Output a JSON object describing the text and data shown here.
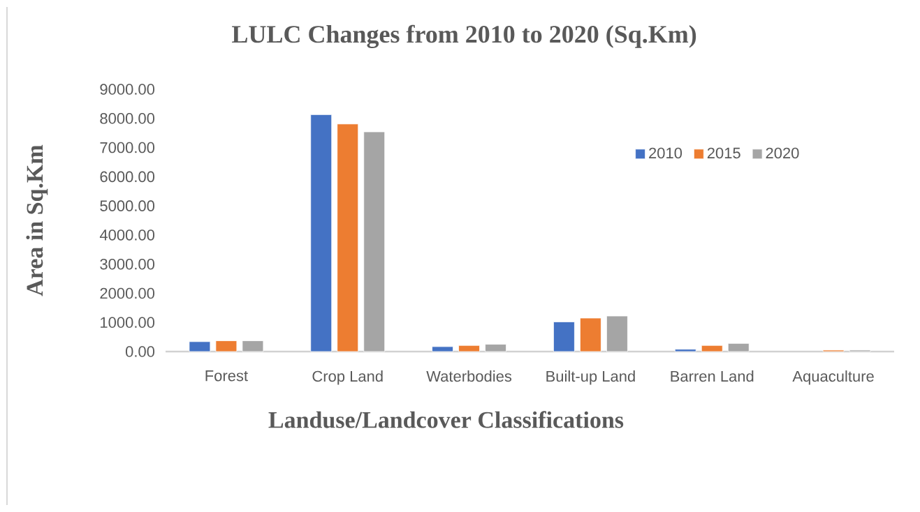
{
  "chart_data": {
    "type": "bar",
    "title": "LULC Changes from 2010 to 2020 (Sq.Km)",
    "xlabel": "Landuse/Landcover Classifications",
    "ylabel": "Area in Sq.Km",
    "categories": [
      "Forest",
      "Crop Land",
      "Waterbodies",
      "Built-up Land",
      "Barren Land",
      "Aquaculture"
    ],
    "series": [
      {
        "name": "2010",
        "color": "#4472c4",
        "values": [
          340,
          8130,
          170,
          1020,
          80,
          null
        ]
      },
      {
        "name": "2015",
        "color": "#ed7d31",
        "values": [
          370,
          7810,
          210,
          1150,
          210,
          50
        ]
      },
      {
        "name": "2020",
        "color": "#a5a5a5",
        "values": [
          370,
          7540,
          250,
          1220,
          280,
          50
        ]
      }
    ],
    "ylim": [
      0,
      9000
    ],
    "yticks": [
      {
        "value": 0,
        "label": "0.00"
      },
      {
        "value": 1000,
        "label": "1000.00"
      },
      {
        "value": 2000,
        "label": "2000.00"
      },
      {
        "value": 3000,
        "label": "3000.00"
      },
      {
        "value": 4000,
        "label": "4000.00"
      },
      {
        "value": 5000,
        "label": "5000.00"
      },
      {
        "value": 6000,
        "label": "6000.00"
      },
      {
        "value": 7000,
        "label": "7000.00"
      },
      {
        "value": 8000,
        "label": "8000.00"
      },
      {
        "value": 9000,
        "label": "9000.00"
      }
    ],
    "grid": false,
    "legend": "top right"
  }
}
